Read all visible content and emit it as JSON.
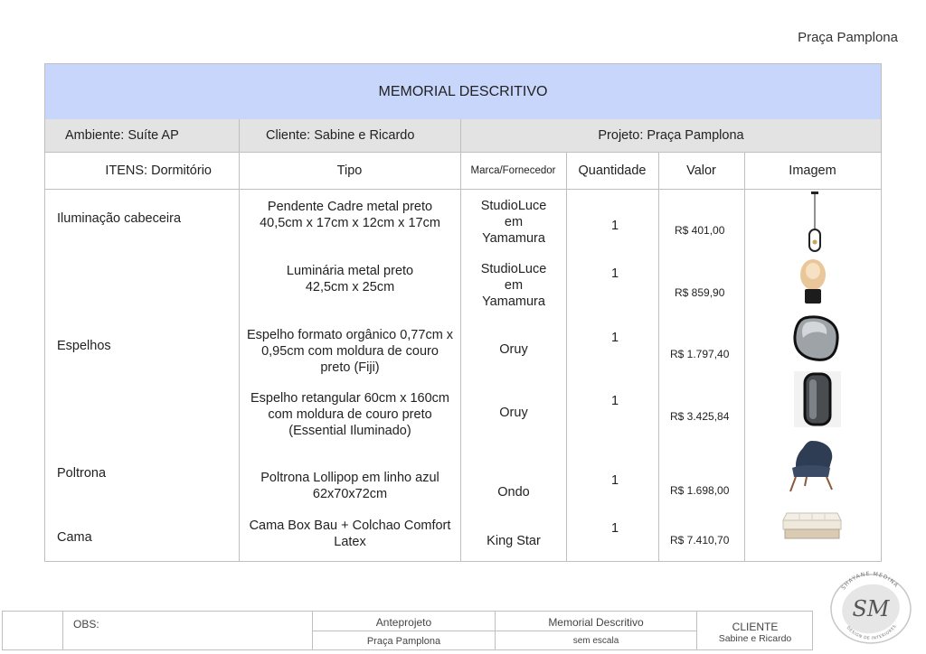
{
  "top_project": "Praça Pamplona",
  "title": "MEMORIAL DESCRITIVO",
  "info": {
    "ambiente": "Ambiente: Suíte AP",
    "cliente": "Cliente: Sabine e Ricardo",
    "projeto": "Projeto: Praça Pamplona"
  },
  "headers": {
    "itens": "ITENS: Dormitório",
    "tipo": "Tipo",
    "marca": "Marca/Fornecedor",
    "quantidade": "Quantidade",
    "valor": "Valor",
    "imagem": "Imagem"
  },
  "groups": {
    "iluminacao": "Iluminação cabeceira",
    "espelhos": "Espelhos",
    "poltrona": "Poltrona",
    "cama": "Cama"
  },
  "items": [
    {
      "tipo_l1": "Pendente Cadre metal preto",
      "tipo_l2": "40,5cm x 17cm x 12cm x 17cm",
      "tipo_l3": "",
      "marca_l1": "StudioLuce",
      "marca_l2": "em",
      "marca_l3": "Yamamura",
      "qtd": "1",
      "valor": "R$ 401,00",
      "img": "pendant-lamp-icon"
    },
    {
      "tipo_l1": "Luminária metal preto",
      "tipo_l2": "42,5cm x 25cm",
      "tipo_l3": "",
      "marca_l1": "StudioLuce",
      "marca_l2": "em",
      "marca_l3": "Yamamura",
      "qtd": "1",
      "valor": "R$ 859,90",
      "img": "table-lamp-icon"
    },
    {
      "tipo_l1": "Espelho formato orgânico 0,77cm x",
      "tipo_l2": "0,95cm com moldura de couro",
      "tipo_l3": "preto (Fiji)",
      "marca_l1": "Oruy",
      "marca_l2": "",
      "marca_l3": "",
      "qtd": "1",
      "valor": "R$ 1.797,40",
      "img": "organic-mirror-icon"
    },
    {
      "tipo_l1": "Espelho retangular 60cm x 160cm",
      "tipo_l2": "com moldura de couro preto",
      "tipo_l3": "(Essential Iluminado)",
      "marca_l1": "Oruy",
      "marca_l2": "",
      "marca_l3": "",
      "qtd": "1",
      "valor": "R$ 3.425,84",
      "img": "rectangular-mirror-icon"
    },
    {
      "tipo_l1": "Poltrona Lollipop em linho azul",
      "tipo_l2": "62x70x72cm",
      "tipo_l3": "",
      "marca_l1": "Ondo",
      "marca_l2": "",
      "marca_l3": "",
      "qtd": "1",
      "valor": "R$ 1.698,00",
      "img": "armchair-icon"
    },
    {
      "tipo_l1": "Cama Box Bau + Colchao Comfort",
      "tipo_l2": "Latex",
      "tipo_l3": "",
      "marca_l1": "King Star",
      "marca_l2": "",
      "marca_l3": "",
      "qtd": "1",
      "valor": "R$ 7.410,70",
      "img": "bed-icon"
    }
  ],
  "footer": {
    "obs": "OBS:",
    "stage": "Anteprojeto",
    "stage_sub": "Praça Pamplona",
    "doc": "Memorial Descritivo",
    "doc_sub": "sem escala",
    "client_label": "CLIENTE",
    "client_name": "Sabine e Ricardo"
  },
  "logo": {
    "initials": "SM",
    "ring_top": "SHAYANE MEDINA",
    "ring_bottom": "DESIGN DE INTERIORES"
  },
  "colors": {
    "title_bg": "#c9d6fb",
    "info_bg": "#e3e3e3",
    "border": "#bfbfbf"
  }
}
